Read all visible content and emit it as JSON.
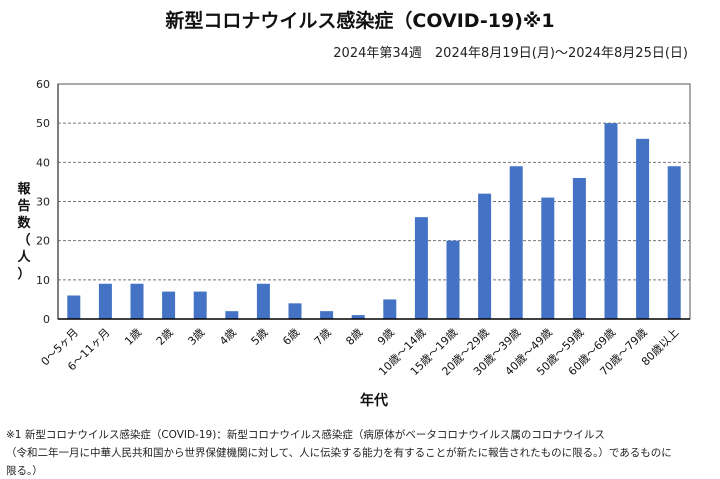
{
  "chart_data": {
    "type": "bar",
    "title": "新型コロナウイルス感染症（COVID-19)※1",
    "subtitle": "2024年第34週　2024年8月19日(月)～2024年8月25日(日)",
    "xlabel": "年代",
    "ylabel": [
      "報",
      "告",
      "数",
      "（",
      "人",
      "）"
    ],
    "ylim": [
      0,
      60
    ],
    "yticks": [
      0,
      10,
      20,
      30,
      40,
      50,
      60
    ],
    "grid": true,
    "categories": [
      "0～5ヶ月",
      "6～11ヶ月",
      "1歳",
      "2歳",
      "3歳",
      "4歳",
      "5歳",
      "6歳",
      "7歳",
      "8歳",
      "9歳",
      "10歳～14歳",
      "15歳～19歳",
      "20歳～29歳",
      "30歳～39歳",
      "40歳～49歳",
      "50歳～59歳",
      "60歳～69歳",
      "70歳～79歳",
      "80歳以上"
    ],
    "values": [
      6,
      9,
      9,
      7,
      7,
      2,
      9,
      4,
      2,
      1,
      5,
      26,
      20,
      32,
      39,
      31,
      36,
      50,
      46,
      39
    ],
    "bar_color": "#4472c4"
  },
  "notes": [
    "※1 新型コロナウイルス感染症（COVID-19)：新型コロナウイルス感染症（病原体がベータコロナウイルス属のコロナウイルス",
    "（令和二年一月に中華人民共和国から世界保健機関に対して、人に伝染する能力を有することが新たに報告されたものに限る。）であるものに",
    "限る。）"
  ]
}
